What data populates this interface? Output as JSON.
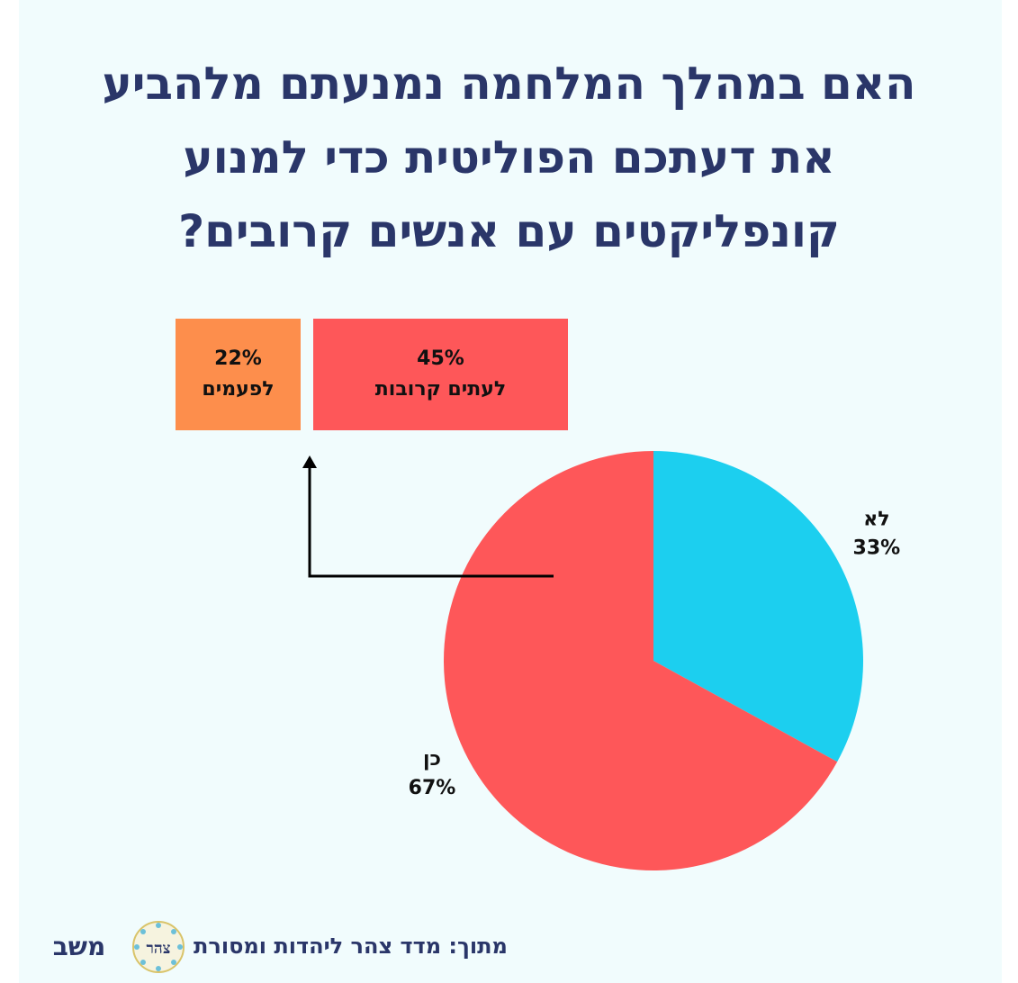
{
  "title_lines": [
    "האם במהלך המלחמה נמנעתם מלהביע",
    "את דעתכם הפוליטית כדי למנוע",
    "קונפליקטים עם אנשים קרובים?"
  ],
  "breakdown": {
    "sometimes": {
      "value": "22%",
      "label": "לפעמים",
      "color": "#fd8e4c"
    },
    "often": {
      "value": "45%",
      "label": "לעתים קרובות",
      "color": "#fe5759"
    }
  },
  "colors": {
    "title": "#2a3669",
    "panel_bg": "#f1fcfd"
  },
  "chart_data": {
    "type": "pie",
    "slices": [
      {
        "label": "לא",
        "value": 33,
        "value_label": "33%",
        "color": "#1ccfef"
      },
      {
        "label": "כן",
        "value": 67,
        "value_label": "67%",
        "color": "#fe5759"
      }
    ],
    "breakdown_of": "כן",
    "breakdown_slices": [
      {
        "label": "לפעמים",
        "value": 22,
        "value_label": "22%"
      },
      {
        "label": "לעתים קרובות",
        "value": 45,
        "value_label": "45%"
      }
    ]
  },
  "footer": {
    "source": "מתוך: מדד צהר ליהדות ומסורת",
    "zohar_logo_text": "צהר",
    "mashav_logo_text": "משב"
  }
}
